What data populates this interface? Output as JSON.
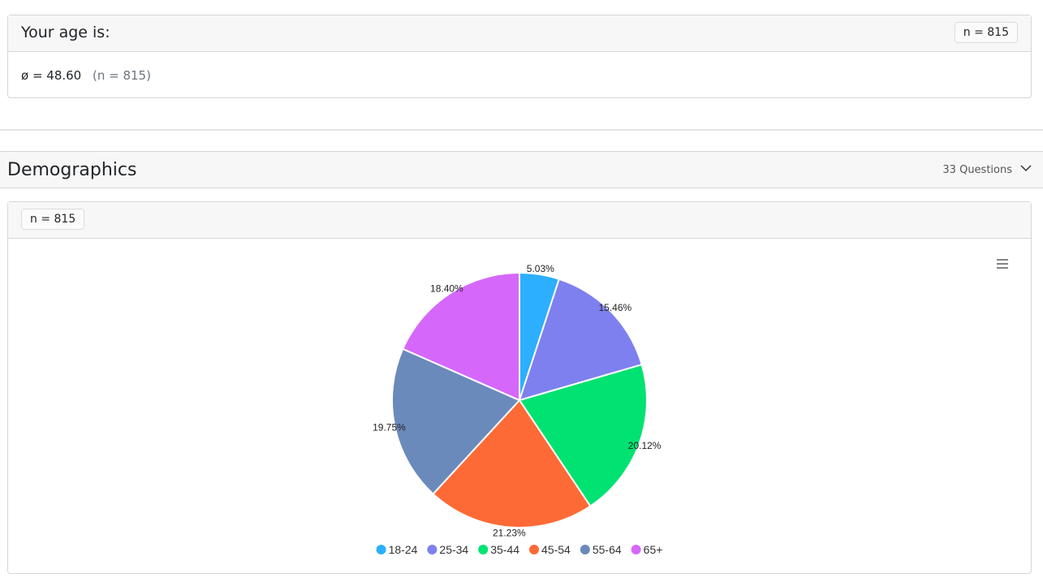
{
  "question": {
    "title": "Your age is:",
    "badge": "n = 815",
    "mean": "ø = 48.60",
    "count": "(n = 815)"
  },
  "section": {
    "title": "Demographics",
    "questions": "33 Questions"
  },
  "card": {
    "badge": "n = 815"
  },
  "chart_data": {
    "type": "pie",
    "categories": [
      "18-24",
      "25-34",
      "35-44",
      "45-54",
      "55-64",
      "65+"
    ],
    "series": [
      {
        "values": [
          5.03,
          15.46,
          20.12,
          21.23,
          19.75,
          18.4
        ],
        "value_labels": [
          "5.03%",
          "15.46%",
          "20.12%",
          "21.23%",
          "19.75%",
          "18.40%"
        ],
        "colors": [
          "#2caffe",
          "#7e80ef",
          "#00e272",
          "#fe6a35",
          "#6b8abc",
          "#d568fb"
        ]
      }
    ],
    "legend": "bottom"
  }
}
